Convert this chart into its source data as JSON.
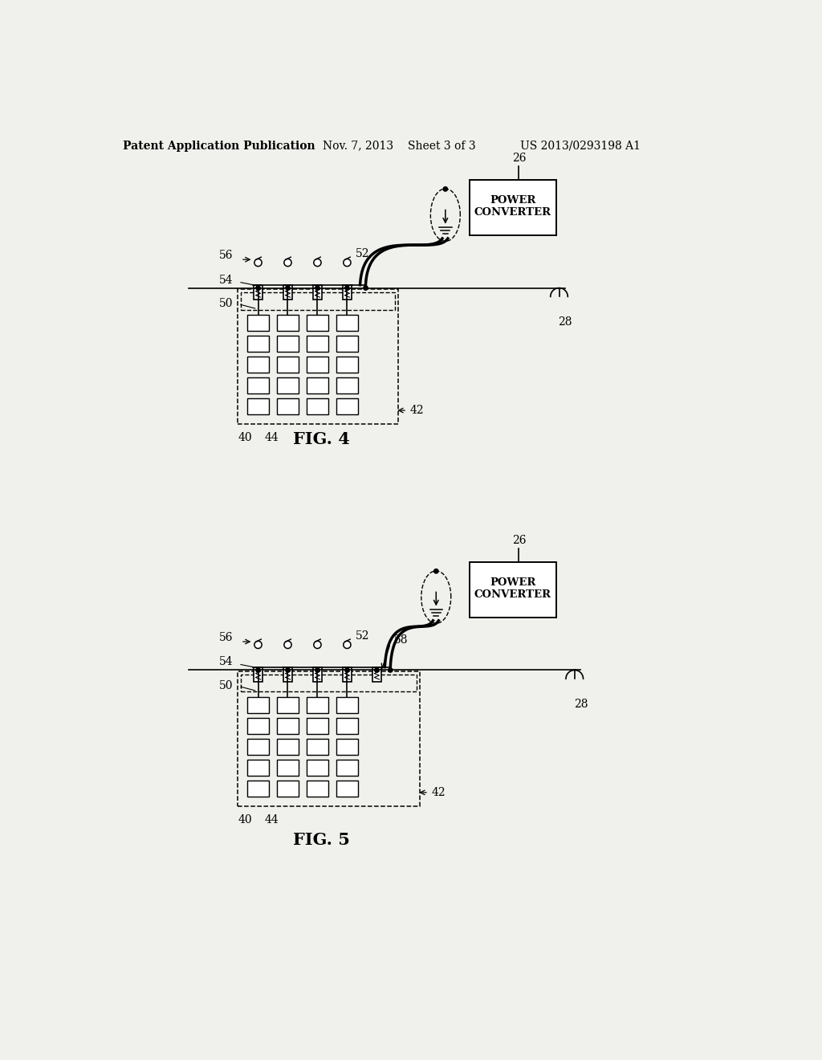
{
  "bg_color": "#f0f0ec",
  "header_text": "Patent Application Publication",
  "header_date": "Nov. 7, 2013",
  "header_sheet": "Sheet 3 of 3",
  "header_patent": "US 2013/0293198 A1",
  "fig4_label": "FIG. 4",
  "fig5_label": "FIG. 5",
  "line_color": "#000000"
}
